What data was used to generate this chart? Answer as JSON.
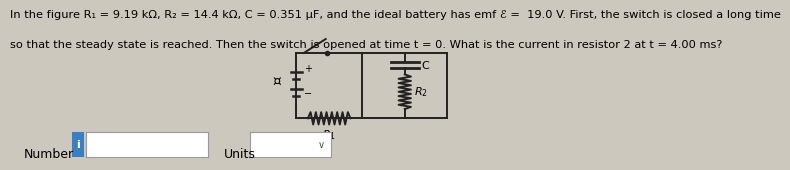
{
  "background_color": "#cdc8be",
  "text_line1": "In the figure R₁ = 9.19 kΩ, R₂ = 14.4 kΩ, C = 0.351 μF, and the ideal battery has emf ℰ =  19.0 V. First, the switch is closed a long time",
  "text_line2": "so that the steady state is reached. Then the switch is opened at time t = 0. What is the current in resistor 2 at t = 4.00 ms?",
  "number_label": "Number",
  "units_label": "Units",
  "info_button_color": "#3a7fc1",
  "info_button_text": "i",
  "input_box_color": "#ffffff",
  "text_fontsize": 8.2,
  "label_fontsize": 9
}
